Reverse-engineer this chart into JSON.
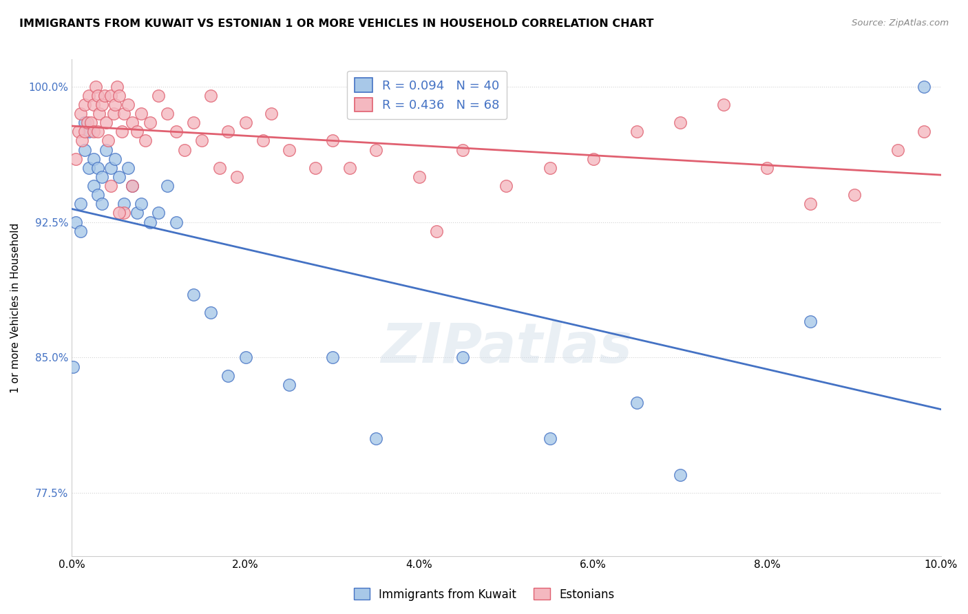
{
  "title": "IMMIGRANTS FROM KUWAIT VS ESTONIAN 1 OR MORE VEHICLES IN HOUSEHOLD CORRELATION CHART",
  "source": "Source: ZipAtlas.com",
  "xlabel_vals": [
    0.0,
    2.0,
    4.0,
    6.0,
    8.0,
    10.0
  ],
  "ylabel_vals": [
    77.5,
    85.0,
    92.5,
    100.0
  ],
  "xmin": 0.0,
  "xmax": 10.0,
  "ymin": 74.0,
  "ymax": 101.5,
  "legend_label1": "Immigrants from Kuwait",
  "legend_label2": "Estonians",
  "R_blue": 0.094,
  "N_blue": 40,
  "R_pink": 0.436,
  "N_pink": 68,
  "blue_color": "#a8c8e8",
  "pink_color": "#f4b8c0",
  "blue_line_color": "#4472c4",
  "pink_line_color": "#e06070",
  "legend_text_color": "#4472c4",
  "blue_points_x": [
    0.05,
    0.1,
    0.1,
    0.15,
    0.15,
    0.2,
    0.2,
    0.25,
    0.25,
    0.3,
    0.3,
    0.35,
    0.35,
    0.4,
    0.45,
    0.5,
    0.55,
    0.6,
    0.65,
    0.7,
    0.75,
    0.8,
    0.9,
    1.0,
    1.1,
    1.2,
    1.4,
    1.6,
    1.8,
    2.0,
    2.5,
    3.0,
    3.5,
    4.5,
    5.5,
    6.5,
    7.0,
    8.5,
    9.8,
    0.02
  ],
  "blue_points_y": [
    92.5,
    93.5,
    92.0,
    98.0,
    96.5,
    97.5,
    95.5,
    96.0,
    94.5,
    95.5,
    94.0,
    95.0,
    93.5,
    96.5,
    95.5,
    96.0,
    95.0,
    93.5,
    95.5,
    94.5,
    93.0,
    93.5,
    92.5,
    93.0,
    94.5,
    92.5,
    88.5,
    87.5,
    84.0,
    85.0,
    83.5,
    85.0,
    80.5,
    85.0,
    80.5,
    82.5,
    78.5,
    87.0,
    100.0,
    84.5
  ],
  "pink_points_x": [
    0.05,
    0.08,
    0.1,
    0.12,
    0.15,
    0.15,
    0.18,
    0.2,
    0.22,
    0.25,
    0.25,
    0.28,
    0.3,
    0.3,
    0.32,
    0.35,
    0.38,
    0.4,
    0.42,
    0.45,
    0.48,
    0.5,
    0.52,
    0.55,
    0.58,
    0.6,
    0.65,
    0.7,
    0.75,
    0.8,
    0.85,
    0.9,
    1.0,
    1.1,
    1.2,
    1.3,
    1.4,
    1.5,
    1.6,
    1.8,
    2.0,
    2.2,
    2.5,
    2.8,
    3.0,
    3.5,
    4.0,
    4.5,
    5.0,
    5.5,
    6.0,
    6.5,
    7.0,
    7.5,
    8.0,
    8.5,
    9.0,
    9.5,
    9.8,
    3.2,
    1.7,
    4.2,
    2.3,
    0.6,
    0.7,
    0.45,
    0.55,
    1.9
  ],
  "pink_points_y": [
    96.0,
    97.5,
    98.5,
    97.0,
    99.0,
    97.5,
    98.0,
    99.5,
    98.0,
    99.0,
    97.5,
    100.0,
    99.5,
    97.5,
    98.5,
    99.0,
    99.5,
    98.0,
    97.0,
    99.5,
    98.5,
    99.0,
    100.0,
    99.5,
    97.5,
    98.5,
    99.0,
    98.0,
    97.5,
    98.5,
    97.0,
    98.0,
    99.5,
    98.5,
    97.5,
    96.5,
    98.0,
    97.0,
    99.5,
    97.5,
    98.0,
    97.0,
    96.5,
    95.5,
    97.0,
    96.5,
    95.0,
    96.5,
    94.5,
    95.5,
    96.0,
    97.5,
    98.0,
    99.0,
    95.5,
    93.5,
    94.0,
    96.5,
    97.5,
    95.5,
    95.5,
    92.0,
    98.5,
    93.0,
    94.5,
    94.5,
    93.0,
    95.0
  ]
}
